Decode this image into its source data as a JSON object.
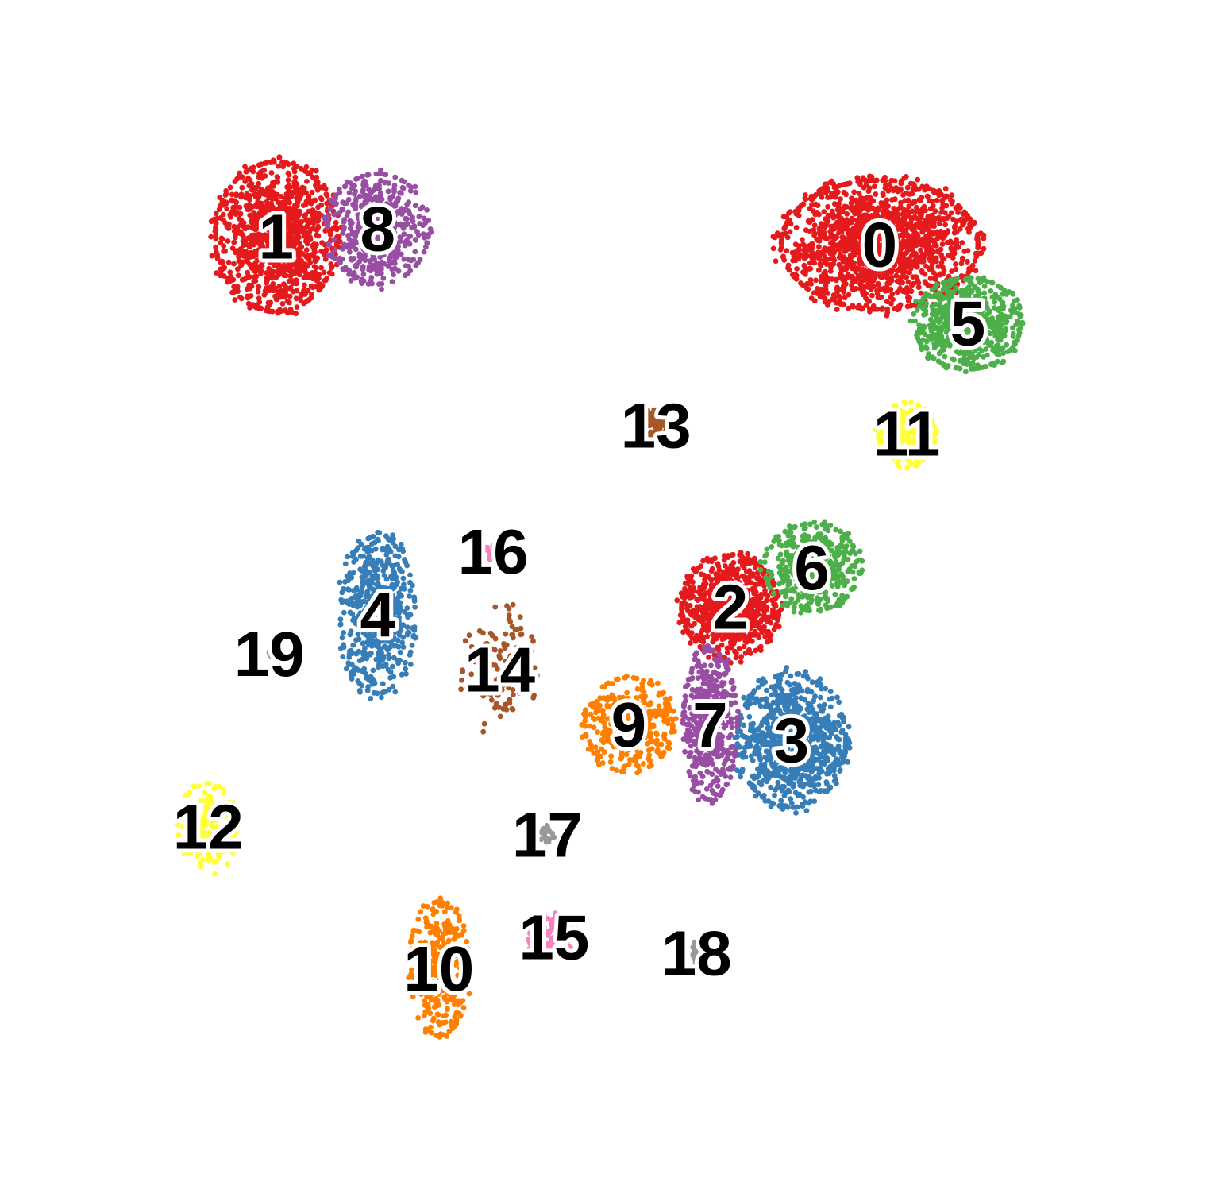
{
  "chart_data": {
    "type": "scatter",
    "title": "",
    "xlabel": "",
    "ylabel": "",
    "grid": false,
    "legend": "none",
    "axes_visible": false,
    "palette": [
      "#e41a1c",
      "#377eb8",
      "#4daf4a",
      "#984ea3",
      "#ff7f00",
      "#ffff33",
      "#a65628",
      "#f781bf",
      "#999999"
    ],
    "clusters": [
      {
        "label": "0",
        "color": "#e41a1c",
        "center": [
          11.8,
          10.4
        ],
        "spread": [
          1.45,
          0.82
        ],
        "n": 1600
      },
      {
        "label": "1",
        "color": "#e41a1c",
        "center": [
          2.9,
          10.5
        ],
        "spread": [
          0.9,
          0.95
        ],
        "n": 1100
      },
      {
        "label": "2",
        "color": "#e41a1c",
        "center": [
          9.6,
          5.8
        ],
        "spread": [
          0.72,
          0.65
        ],
        "n": 800
      },
      {
        "label": "3",
        "color": "#377eb8",
        "center": [
          10.5,
          4.1
        ],
        "spread": [
          0.8,
          0.85
        ],
        "n": 900
      },
      {
        "label": "4",
        "color": "#377eb8",
        "center": [
          4.4,
          5.7
        ],
        "spread": [
          0.55,
          1.0
        ],
        "n": 600
      },
      {
        "label": "5",
        "color": "#4daf4a",
        "center": [
          13.1,
          9.4
        ],
        "spread": [
          0.78,
          0.58
        ],
        "n": 650
      },
      {
        "label": "6",
        "color": "#4daf4a",
        "center": [
          10.8,
          6.3
        ],
        "spread": [
          0.7,
          0.55
        ],
        "n": 500
      },
      {
        "label": "7",
        "color": "#984ea3",
        "center": [
          9.3,
          4.3
        ],
        "spread": [
          0.4,
          0.95
        ],
        "n": 500
      },
      {
        "label": "8",
        "color": "#984ea3",
        "center": [
          4.4,
          10.6
        ],
        "spread": [
          0.75,
          0.7
        ],
        "n": 500
      },
      {
        "label": "9",
        "color": "#ff7f00",
        "center": [
          8.1,
          4.3
        ],
        "spread": [
          0.65,
          0.6
        ],
        "n": 400
      },
      {
        "label": "10",
        "color": "#ff7f00",
        "center": [
          5.3,
          1.2
        ],
        "spread": [
          0.45,
          0.85
        ],
        "n": 350
      },
      {
        "label": "11",
        "color": "#ffff33",
        "center": [
          12.2,
          8.0
        ],
        "spread": [
          0.42,
          0.4
        ],
        "n": 220
      },
      {
        "label": "12",
        "color": "#ffff33",
        "center": [
          1.9,
          3.0
        ],
        "spread": [
          0.45,
          0.55
        ],
        "n": 160
      },
      {
        "label": "13",
        "color": "#a65628",
        "center": [
          8.5,
          8.1
        ],
        "spread": [
          0.22,
          0.22
        ],
        "n": 80
      },
      {
        "label": "14",
        "color": "#a65628",
        "center": [
          6.2,
          5.0
        ],
        "spread": [
          0.55,
          0.8
        ],
        "n": 130
      },
      {
        "label": "15",
        "color": "#f781bf",
        "center": [
          7.0,
          1.6
        ],
        "spread": [
          0.38,
          0.3
        ],
        "n": 110
      },
      {
        "label": "16",
        "color": "#f781bf",
        "center": [
          6.1,
          6.5
        ],
        "spread": [
          0.3,
          0.1
        ],
        "n": 40
      },
      {
        "label": "17",
        "color": "#999999",
        "center": [
          6.9,
          2.9
        ],
        "spread": [
          0.1,
          0.18
        ],
        "n": 20
      },
      {
        "label": "18",
        "color": "#999999",
        "center": [
          9.1,
          1.4
        ],
        "spread": [
          0.06,
          0.25
        ],
        "n": 14
      },
      {
        "label": "19",
        "color": "#999999",
        "center": [
          2.8,
          5.2
        ],
        "spread": [
          0.04,
          0.05
        ],
        "n": 5
      }
    ],
    "xlim": [
      0,
      15.5
    ],
    "ylim": [
      -0.5,
      12.5
    ]
  }
}
